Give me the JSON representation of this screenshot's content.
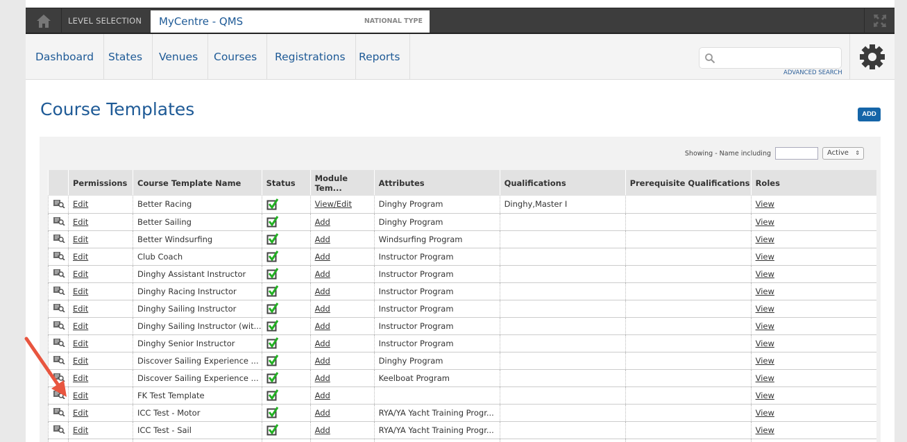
{
  "topbar": {
    "level_selection": "LEVEL SELECTION",
    "centre_name": "MyCentre - QMS",
    "centre_type": "NATIONAL TYPE"
  },
  "nav": {
    "items": [
      "Dashboard",
      "States",
      "Venues",
      "Courses",
      "Registrations",
      "Reports"
    ],
    "search_placeholder": "",
    "advanced_search": "ADVANCED SEARCH"
  },
  "page": {
    "title": "Course Templates",
    "add_label": "ADD"
  },
  "filter": {
    "label": "Showing - Name including",
    "value": "",
    "status": "Active"
  },
  "table": {
    "columns": [
      "",
      "Permissions",
      "Course Template Name",
      "Status",
      "Module Tem...",
      "Attributes",
      "Qualifications",
      "Prerequisite Qualifications",
      "Roles"
    ],
    "rows": [
      {
        "perm": "Edit",
        "name": "Better Racing",
        "module": "View/Edit",
        "attr": "Dinghy Program",
        "qual": "Dinghy,Master I",
        "prereq": "",
        "roles": "View"
      },
      {
        "perm": "Edit",
        "name": "Better Sailing",
        "module": "Add",
        "attr": "Dinghy Program",
        "qual": "",
        "prereq": "",
        "roles": "View"
      },
      {
        "perm": "Edit",
        "name": "Better Windsurfing",
        "module": "Add",
        "attr": "Windsurfing Program",
        "qual": "",
        "prereq": "",
        "roles": "View"
      },
      {
        "perm": "Edit",
        "name": "Club Coach",
        "module": "Add",
        "attr": "Instructor Program",
        "qual": "",
        "prereq": "",
        "roles": "View"
      },
      {
        "perm": "Edit",
        "name": "Dinghy Assistant Instructor",
        "module": "Add",
        "attr": "Instructor Program",
        "qual": "",
        "prereq": "",
        "roles": "View"
      },
      {
        "perm": "Edit",
        "name": "Dinghy Racing Instructor",
        "module": "Add",
        "attr": "Instructor Program",
        "qual": "",
        "prereq": "",
        "roles": "View"
      },
      {
        "perm": "Edit",
        "name": "Dinghy Sailing Instructor",
        "module": "Add",
        "attr": "Instructor Program",
        "qual": "",
        "prereq": "",
        "roles": "View"
      },
      {
        "perm": "Edit",
        "name": "Dinghy Sailing Instructor (wit...",
        "module": "Add",
        "attr": "Instructor Program",
        "qual": "",
        "prereq": "",
        "roles": "View"
      },
      {
        "perm": "Edit",
        "name": "Dinghy Senior Instructor",
        "module": "Add",
        "attr": "Instructor Program",
        "qual": "",
        "prereq": "",
        "roles": "View"
      },
      {
        "perm": "Edit",
        "name": "Discover Sailing Experience ...",
        "module": "Add",
        "attr": "Dinghy Program",
        "qual": "",
        "prereq": "",
        "roles": "View"
      },
      {
        "perm": "Edit",
        "name": "Discover Sailing Experience ...",
        "module": "Add",
        "attr": "Keelboat Program",
        "qual": "",
        "prereq": "",
        "roles": "View"
      },
      {
        "perm": "Edit",
        "name": "FK Test Template",
        "module": "Add",
        "attr": "",
        "qual": "",
        "prereq": "",
        "roles": "View"
      },
      {
        "perm": "Edit",
        "name": "ICC Test - Motor",
        "module": "Add",
        "attr": "RYA/YA Yacht Training Progr...",
        "qual": "",
        "prereq": "",
        "roles": "View"
      },
      {
        "perm": "Edit",
        "name": "ICC Test - Sail",
        "module": "Add",
        "attr": "RYA/YA Yacht Training Progr...",
        "qual": "",
        "prereq": "",
        "roles": "View"
      },
      {
        "perm": "",
        "name": "",
        "module": "",
        "attr": "",
        "qual": "",
        "prereq": "",
        "roles": ""
      }
    ]
  },
  "colors": {
    "brand": "#1e5a96",
    "topbar": "#3d3d3d",
    "check": "#22b022",
    "annotation_arrow": "#e8553f"
  }
}
